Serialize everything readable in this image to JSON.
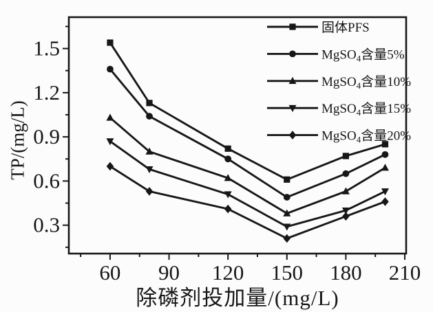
{
  "chart_data": {
    "type": "line",
    "title": "",
    "xlabel": "除磷剂投加量/(mg/L)",
    "ylabel": "TP/(mg/L)",
    "x": [
      60,
      80,
      120,
      150,
      180,
      200
    ],
    "xlim": [
      39,
      210.7
    ],
    "ylim": [
      0.107,
      1.713
    ],
    "x_ticks_major": [
      60,
      90,
      120,
      150,
      180,
      210
    ],
    "x_ticks_minor_step": 15,
    "y_ticks_major": [
      0.3,
      0.6,
      0.9,
      1.2,
      1.5
    ],
    "y_ticks_minor_step": 0.15,
    "grid": false,
    "legend_position": "top-right-inside",
    "line_color": "#171717",
    "background": "#fcfcfc",
    "series": [
      {
        "name": "固体PFS",
        "marker": "square",
        "label_parts": [
          {
            "t": "固体PFS"
          }
        ],
        "values": [
          1.54,
          1.13,
          0.82,
          0.61,
          0.77,
          0.85
        ]
      },
      {
        "name": "MgSO4含量5%",
        "marker": "circle",
        "label_parts": [
          {
            "t": "MgSO"
          },
          {
            "t": "4",
            "sub": true
          },
          {
            "t": "含量5%"
          }
        ],
        "values": [
          1.36,
          1.04,
          0.75,
          0.49,
          0.65,
          0.78
        ]
      },
      {
        "name": "MgSO4含量10%",
        "marker": "triangle-up",
        "label_parts": [
          {
            "t": "MgSO"
          },
          {
            "t": "4",
            "sub": true
          },
          {
            "t": "含量10%"
          }
        ],
        "values": [
          1.03,
          0.8,
          0.62,
          0.38,
          0.53,
          0.69
        ]
      },
      {
        "name": "MgSO4含量15%",
        "marker": "triangle-down",
        "label_parts": [
          {
            "t": "MgSO"
          },
          {
            "t": "4",
            "sub": true
          },
          {
            "t": "含量15%"
          }
        ],
        "values": [
          0.87,
          0.68,
          0.51,
          0.29,
          0.4,
          0.53
        ]
      },
      {
        "name": "MgSO4含量20%",
        "marker": "diamond",
        "label_parts": [
          {
            "t": "MgSO"
          },
          {
            "t": "4",
            "sub": true
          },
          {
            "t": "含量20%"
          }
        ],
        "values": [
          0.7,
          0.53,
          0.41,
          0.21,
          0.36,
          0.46
        ]
      }
    ]
  }
}
